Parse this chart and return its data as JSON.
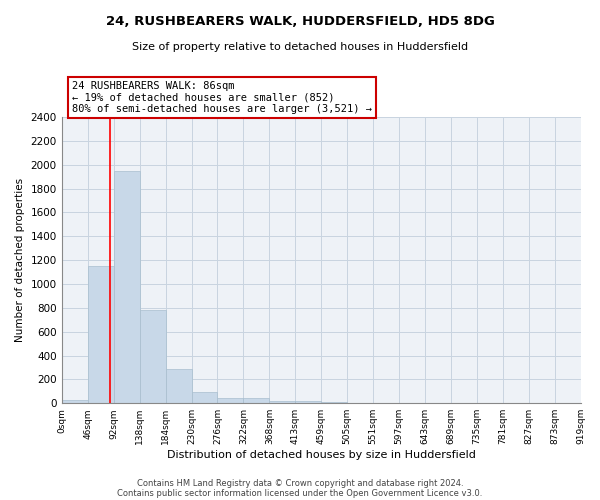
{
  "title1": "24, RUSHBEARERS WALK, HUDDERSFIELD, HD5 8DG",
  "title2": "Size of property relative to detached houses in Huddersfield",
  "xlabel": "Distribution of detached houses by size in Huddersfield",
  "ylabel": "Number of detached properties",
  "footer1": "Contains HM Land Registry data © Crown copyright and database right 2024.",
  "footer2": "Contains public sector information licensed under the Open Government Licence v3.0.",
  "bar_color": "#c8d8e8",
  "bar_edge_color": "#a8bece",
  "grid_color": "#c8d4e0",
  "annotation_box_color": "#cc0000",
  "annotation_line1": "24 RUSHBEARERS WALK: 86sqm",
  "annotation_line2": "← 19% of detached houses are smaller (852)",
  "annotation_line3": "80% of semi-detached houses are larger (3,521) →",
  "property_line_x": 86,
  "bin_edges": [
    0,
    46,
    92,
    138,
    184,
    230,
    276,
    322,
    368,
    413,
    459,
    505,
    551,
    597,
    643,
    689,
    735,
    781,
    827,
    873,
    919
  ],
  "bin_labels": [
    "0sqm",
    "46sqm",
    "92sqm",
    "138sqm",
    "184sqm",
    "230sqm",
    "276sqm",
    "322sqm",
    "368sqm",
    "413sqm",
    "459sqm",
    "505sqm",
    "551sqm",
    "597sqm",
    "643sqm",
    "689sqm",
    "735sqm",
    "781sqm",
    "827sqm",
    "873sqm",
    "919sqm"
  ],
  "bar_heights": [
    30,
    1150,
    1950,
    780,
    290,
    95,
    40,
    40,
    20,
    20,
    10,
    5,
    0,
    0,
    0,
    0,
    0,
    0,
    0,
    0
  ],
  "ylim": [
    0,
    2400
  ],
  "yticks": [
    0,
    200,
    400,
    600,
    800,
    1000,
    1200,
    1400,
    1600,
    1800,
    2000,
    2200,
    2400
  ],
  "background_color": "#eef2f7",
  "fig_width": 6.0,
  "fig_height": 5.0,
  "dpi": 100
}
